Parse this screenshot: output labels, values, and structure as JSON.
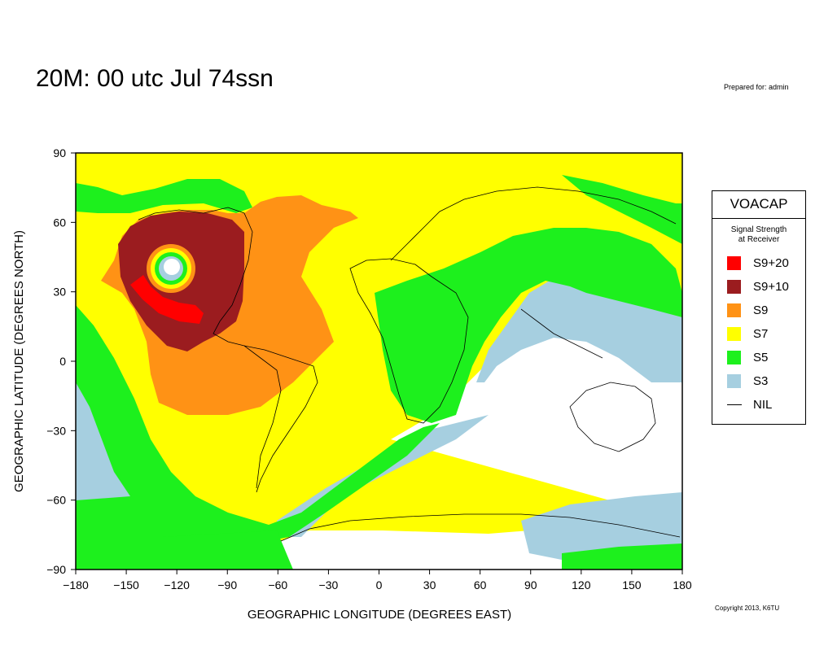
{
  "title": "20M:  00 utc Jul 74ssn",
  "prepared_for": "Prepared for: admin",
  "copyright": "Copyright 2013, K6TU",
  "map": {
    "x_ticks": [
      "−180",
      "−150",
      "−120",
      "−90",
      "−60",
      "−30",
      "0",
      "30",
      "60",
      "90",
      "120",
      "150",
      "180"
    ],
    "y_ticks": [
      "90",
      "60",
      "30",
      "0",
      "−30",
      "−60",
      "−90"
    ],
    "x_label": "GEOGRAPHIC LONGITUDE (DEGREES EAST)",
    "y_label": "GEOGRAPHIC LATITUDE (DEGREES NORTH)",
    "x_range": [
      -180,
      180
    ],
    "y_range": [
      -90,
      90
    ]
  },
  "legend": {
    "title": "VOACAP",
    "subtitle_line1": "Signal Strength",
    "subtitle_line2": "at Receiver",
    "items": [
      {
        "label": "S9+20",
        "color": "#ff0000"
      },
      {
        "label": "S9+10",
        "color": "#9b1c1f"
      },
      {
        "label": "S9",
        "color": "#ff9215"
      },
      {
        "label": "S7",
        "color": "#ffff00"
      },
      {
        "label": "S5",
        "color": "#1df01d"
      },
      {
        "label": "S3",
        "color": "#a6cfe0"
      },
      {
        "label": "NIL",
        "color": "#ffffff"
      }
    ]
  },
  "colors": {
    "s9_20": "#ff0000",
    "s9_10": "#9b1c1f",
    "s9": "#ff9215",
    "s7": "#ffff00",
    "s5": "#1df01d",
    "s3": "#a6cfe0",
    "nil": "#ffffff"
  }
}
